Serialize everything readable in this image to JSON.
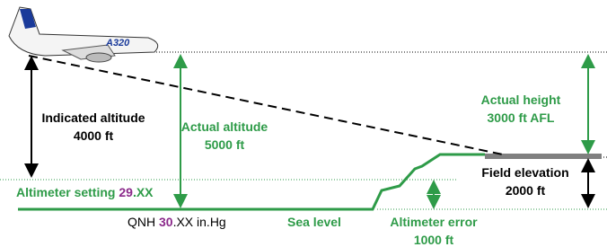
{
  "plane": {
    "label": "A320"
  },
  "indicated": {
    "title": "Indicated altitude",
    "value": "4000 ft"
  },
  "actual_altitude": {
    "title": "Actual altitude",
    "value": "5000 ft"
  },
  "actual_height": {
    "title": "Actual height",
    "value": "3000 ft AFL"
  },
  "field_elevation": {
    "title": "Field elevation",
    "value": "2000 ft"
  },
  "altimeter_setting": {
    "prefix": "Altimeter setting ",
    "highlight": "29",
    "suffix": ".XX"
  },
  "qnh": {
    "prefix": "QNH ",
    "highlight": "30",
    "suffix": ".XX in.Hg"
  },
  "sea_level": "Sea level",
  "altimeter_error": {
    "title": "Altimeter error",
    "value": "1000 ft"
  }
}
